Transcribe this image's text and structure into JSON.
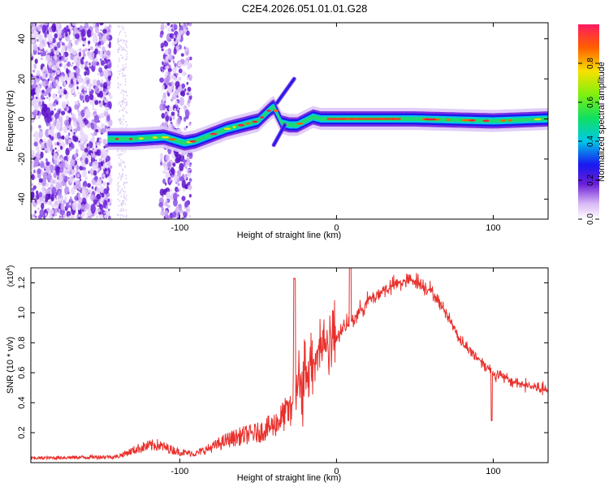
{
  "title": "C2E4.2026.051.01.01.G28",
  "chart_data": [
    {
      "type": "heatmap",
      "name": "spectrogram",
      "xlabel": "Height of straight line (km)",
      "ylabel": "Frequency (Hz)",
      "xlim": [
        -195,
        135
      ],
      "ylim": [
        -50,
        48
      ],
      "xticks": [
        -100,
        0,
        100
      ],
      "yticks": [
        -40,
        -20,
        0,
        20,
        40
      ],
      "colorbar": {
        "label": "Normalized spectral amplitude",
        "range": [
          0,
          1
        ],
        "ticks": [
          "0.0",
          "0.2",
          "0.4",
          "0.6",
          "0.8"
        ],
        "tick_values": [
          0.0,
          0.2,
          0.4,
          0.6,
          0.8
        ]
      },
      "ridge": {
        "description_points_x": [
          -146,
          -130,
          -110,
          -97,
          -90,
          -80,
          -70,
          -60,
          -50,
          -42,
          -40,
          -35,
          -30,
          -25,
          -20,
          -15,
          -10,
          0,
          20,
          50,
          100,
          135
        ],
        "description_points_y": [
          -10,
          -10,
          -9,
          -12,
          -11,
          -8,
          -5,
          -3,
          -1,
          5,
          6,
          -2,
          -3,
          -3,
          -1,
          1,
          0,
          0,
          0,
          0,
          -1,
          0
        ]
      }
    },
    {
      "type": "line",
      "name": "snr",
      "xlabel": "Height of straight line (km)",
      "ylabel": "SNR (10 * v/v)",
      "scale_label": "(x10^4)",
      "xlim": [
        -195,
        135
      ],
      "ylim": [
        0,
        1.3
      ],
      "xticks": [
        -100,
        0,
        100
      ],
      "yticks": [
        0.2,
        0.4,
        0.6,
        0.8,
        1.0,
        1.2
      ],
      "ytick_labels": [
        "0.2",
        "0.4",
        "0.6",
        "0.8",
        "1.0",
        "1.2"
      ],
      "color": "#e8302c",
      "envelope_x": [
        -195,
        -140,
        -125,
        -115,
        -100,
        -90,
        -80,
        -70,
        -60,
        -50,
        -40,
        -30,
        -25,
        -20,
        -15,
        -10,
        0,
        10,
        20,
        30,
        40,
        50,
        60,
        70,
        80,
        90,
        95,
        100,
        110,
        120,
        135
      ],
      "envelope_y": [
        0.03,
        0.04,
        0.1,
        0.12,
        0.07,
        0.06,
        0.1,
        0.15,
        0.18,
        0.2,
        0.25,
        0.35,
        0.45,
        0.6,
        0.7,
        0.78,
        0.85,
        0.95,
        1.08,
        1.15,
        1.2,
        1.22,
        1.15,
        1.0,
        0.8,
        0.7,
        0.65,
        0.6,
        0.55,
        0.52,
        0.48
      ]
    }
  ]
}
